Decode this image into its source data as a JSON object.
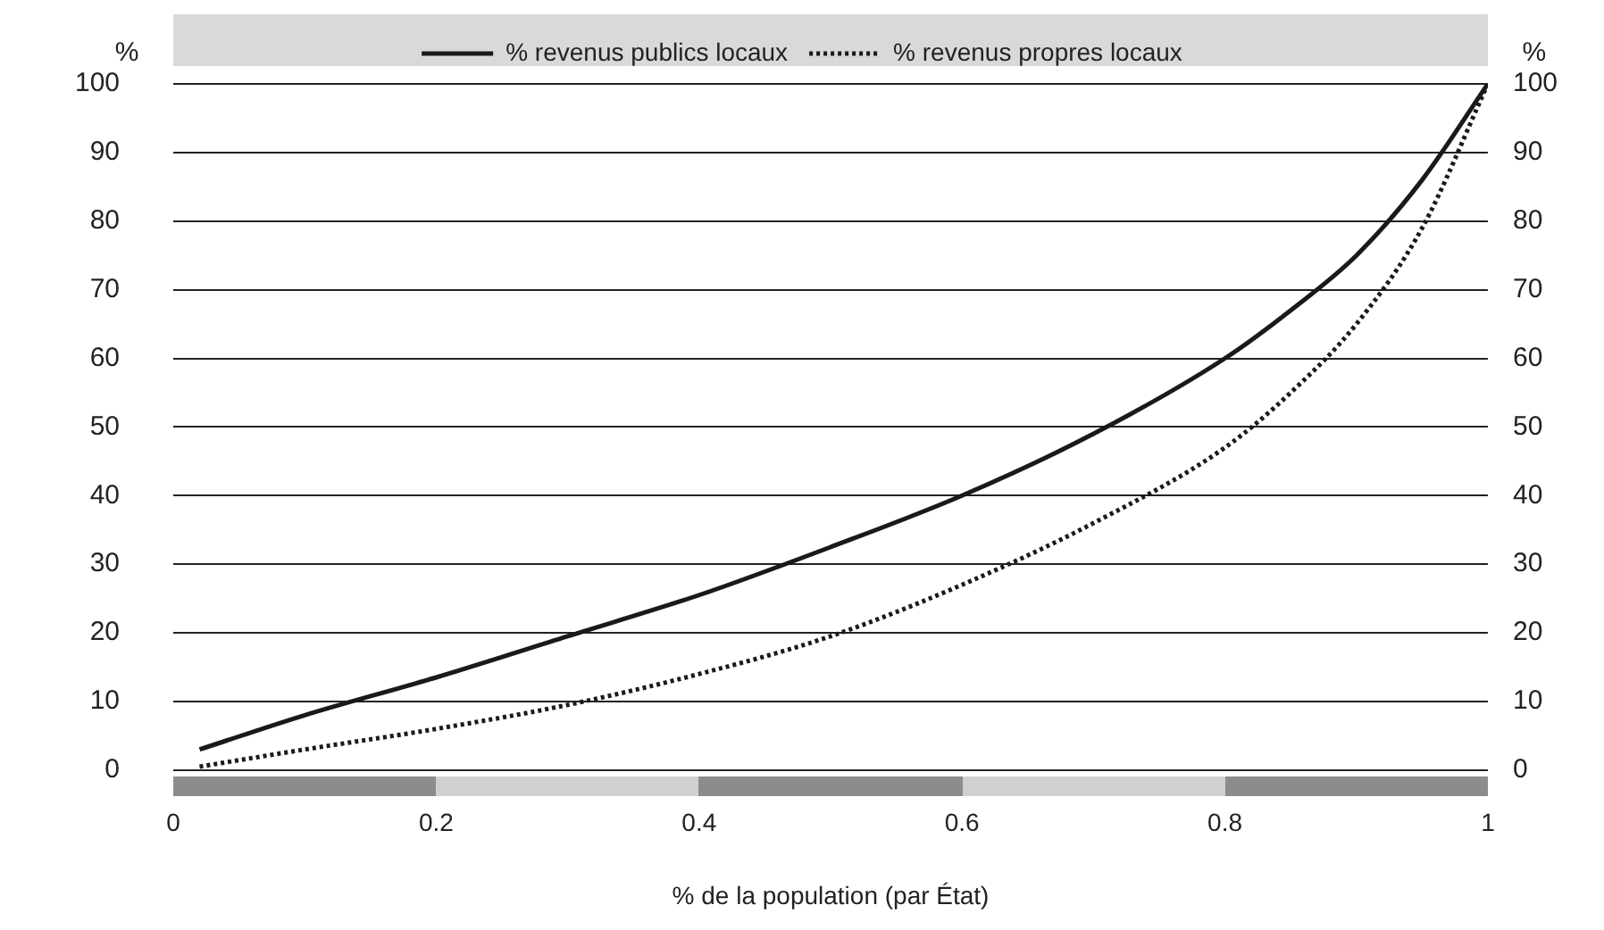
{
  "chart_data": {
    "type": "line",
    "xlabel": "% de la population (par État)",
    "ylabel": "%",
    "y2label": "%",
    "xlim": [
      0,
      1
    ],
    "xticks": [
      0,
      0.2,
      0.4,
      0.6,
      0.8,
      1
    ],
    "ylim": [
      0,
      100
    ],
    "yticks": [
      0,
      10,
      20,
      30,
      40,
      50,
      60,
      70,
      80,
      90,
      100
    ],
    "y2lim": [
      0,
      100
    ],
    "y2ticks": [
      0,
      10,
      20,
      30,
      40,
      50,
      60,
      70,
      80,
      90,
      100
    ],
    "grid": "y",
    "legend": "top",
    "marker": "none",
    "series": [
      {
        "name": "% revenus publics locaux",
        "color": "#1a1a1a",
        "line_style": "solid",
        "x": [
          0.02,
          0.1,
          0.2,
          0.3,
          0.4,
          0.5,
          0.6,
          0.7,
          0.8,
          0.85,
          0.9,
          0.95,
          1
        ],
        "values": [
          3,
          8,
          13.5,
          19.5,
          25.5,
          32.5,
          40,
          49,
          60,
          67,
          75,
          86,
          100
        ]
      },
      {
        "name": "% revenus propres locaux",
        "color": "#1a1a1a",
        "line_style": "dotted",
        "x": [
          0.02,
          0.1,
          0.2,
          0.3,
          0.4,
          0.5,
          0.6,
          0.7,
          0.8,
          0.85,
          0.9,
          0.95,
          1
        ],
        "values": [
          0.5,
          3,
          6,
          9.5,
          14,
          19.5,
          27,
          36,
          47,
          55,
          65,
          79,
          100
        ]
      }
    ]
  }
}
